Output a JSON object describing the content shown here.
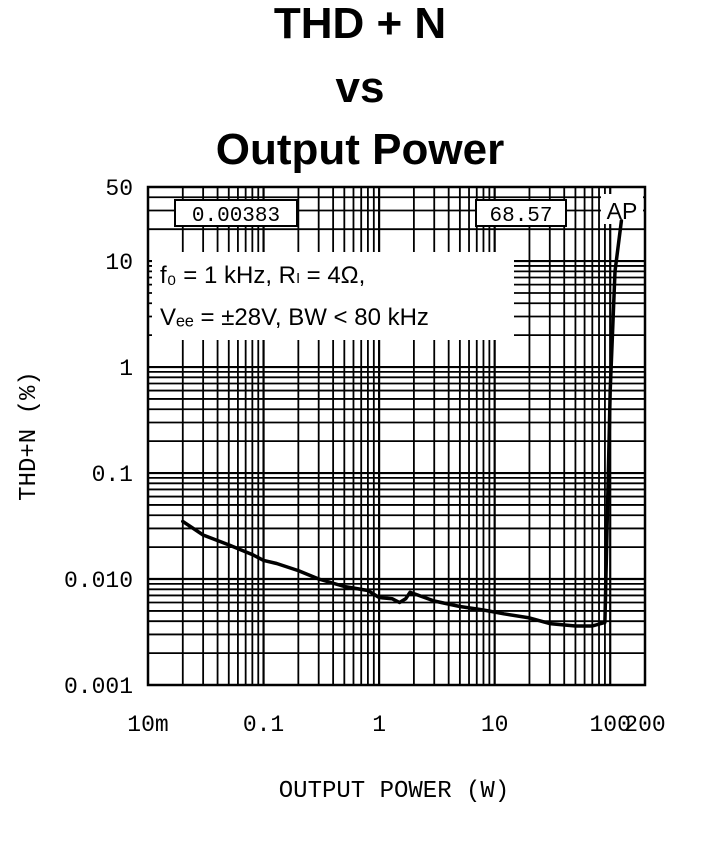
{
  "chart_data": {
    "type": "line",
    "title": [
      "THD + N",
      "vs",
      "Output Power"
    ],
    "xlabel": "OUTPUT POWER (W)",
    "ylabel": "THD+N (%)",
    "x_scale": "log",
    "y_scale": "log",
    "xlim": [
      0.01,
      200
    ],
    "ylim": [
      0.001,
      50
    ],
    "x_ticks": [
      {
        "value": 0.01,
        "label": "10m"
      },
      {
        "value": 0.1,
        "label": "0.1"
      },
      {
        "value": 1,
        "label": "1"
      },
      {
        "value": 10,
        "label": "10"
      },
      {
        "value": 100,
        "label": "100"
      },
      {
        "value": 200,
        "label": "200"
      }
    ],
    "y_ticks": [
      {
        "value": 0.001,
        "label": "0.001"
      },
      {
        "value": 0.01,
        "label": "0.010"
      },
      {
        "value": 0.1,
        "label": "0.1"
      },
      {
        "value": 1,
        "label": "1"
      },
      {
        "value": 10,
        "label": "10"
      },
      {
        "value": 50,
        "label": "50"
      }
    ],
    "grid": true,
    "annotations": {
      "min_thd_box": "0.00383",
      "max_power_box": "68.57",
      "ap_logo": "AP",
      "conditions_line1": "f₀ = 1 kHz, Rₗ = 4Ω,",
      "conditions_line2": "Vₑₑ = ±28V, BW < 80 kHz"
    },
    "series": [
      {
        "x": [
          0.02,
          0.03,
          0.05,
          0.08,
          0.1,
          0.13,
          0.2,
          0.3,
          0.5,
          0.8,
          1.0,
          1.3,
          1.5,
          1.7,
          1.85,
          2.2,
          3,
          5,
          8,
          12,
          20,
          30,
          50,
          70,
          90,
          100,
          110,
          125
        ],
        "y": [
          0.035,
          0.026,
          0.021,
          0.017,
          0.015,
          0.014,
          0.012,
          0.01,
          0.0085,
          0.0078,
          0.0067,
          0.0065,
          0.006,
          0.0065,
          0.0075,
          0.007,
          0.0062,
          0.0055,
          0.0051,
          0.0047,
          0.0043,
          0.0038,
          0.0036,
          0.0036,
          0.0039,
          0.6,
          8,
          24
        ]
      }
    ]
  }
}
